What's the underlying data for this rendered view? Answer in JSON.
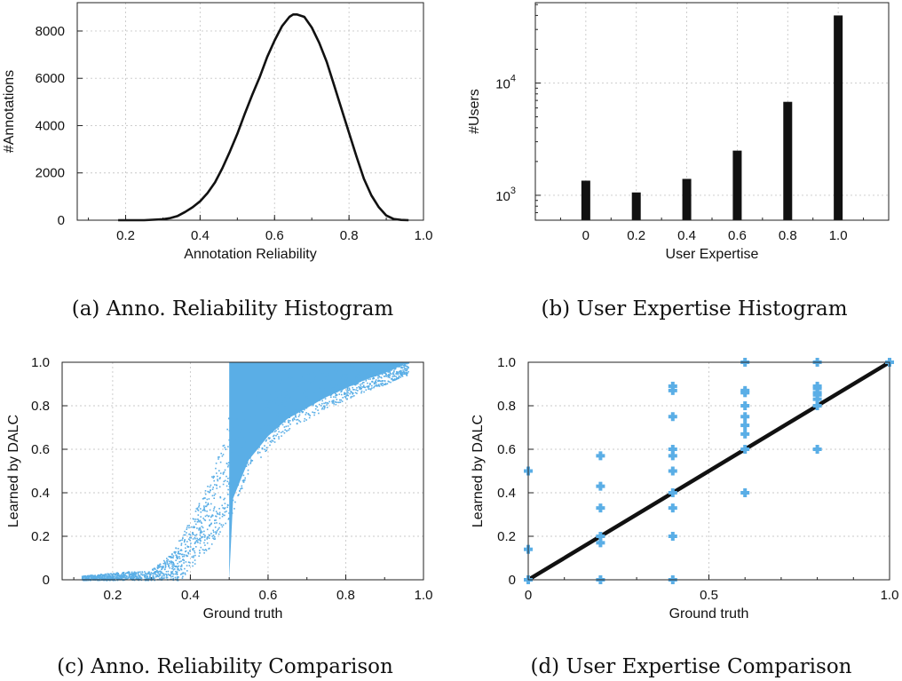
{
  "chart_data": [
    {
      "type": "line",
      "caption": "(a)  Anno. Reliability Histogram",
      "xlabel": "Annotation Reliability",
      "ylabel": "#Annotations",
      "xlim": [
        0.07,
        1.0
      ],
      "ylim": [
        0,
        9200
      ],
      "xticks": [
        "0.2",
        "0.4",
        "0.6",
        "0.8",
        "1.0"
      ],
      "xtick_values": [
        0.2,
        0.4,
        0.6,
        0.8,
        1.0
      ],
      "yticks": [
        "0",
        "2000",
        "4000",
        "6000",
        "8000"
      ],
      "ytick_values": [
        0,
        2000,
        4000,
        6000,
        8000
      ],
      "grid": true,
      "line_color": "#111111",
      "series": [
        {
          "x": [
            0.18,
            0.25,
            0.3,
            0.32,
            0.34,
            0.36,
            0.38,
            0.4,
            0.42,
            0.44,
            0.46,
            0.48,
            0.5,
            0.52,
            0.54,
            0.56,
            0.58,
            0.6,
            0.62,
            0.64,
            0.65,
            0.66,
            0.67,
            0.68,
            0.7,
            0.72,
            0.74,
            0.76,
            0.78,
            0.8,
            0.82,
            0.84,
            0.86,
            0.88,
            0.9,
            0.92,
            0.94,
            0.96
          ],
          "y": [
            0,
            0,
            40,
            90,
            180,
            350,
            550,
            800,
            1150,
            1600,
            2200,
            2900,
            3650,
            4500,
            5300,
            6050,
            6900,
            7600,
            8200,
            8600,
            8700,
            8700,
            8650,
            8600,
            8150,
            7500,
            6700,
            5700,
            4700,
            3700,
            2700,
            1750,
            1050,
            550,
            200,
            50,
            10,
            0
          ]
        }
      ]
    },
    {
      "type": "bar",
      "caption": "(b)  User Expertise Histogram",
      "xlabel": "User Expertise",
      "ylabel": "#Users",
      "yscale": "log",
      "xlim": [
        -0.2,
        1.2
      ],
      "ylim": [
        600,
        52000
      ],
      "categories": [
        "0",
        "0.2",
        "0.4",
        "0.6",
        "0.8",
        "1.0"
      ],
      "x": [
        0,
        0.2,
        0.4,
        0.6,
        0.8,
        1.0
      ],
      "values": [
        1350,
        1060,
        1400,
        2500,
        6800,
        40000
      ],
      "ytick_major": [
        1000,
        10000
      ],
      "ytick_labels": [
        {
          "base": "10",
          "exp": "3"
        },
        {
          "base": "10",
          "exp": "4"
        }
      ],
      "grid": true,
      "bar_color": "#111111"
    },
    {
      "type": "scatter",
      "caption": "(c)  Anno. Reliability Comparison",
      "xlabel": "Ground truth",
      "ylabel": "Learned by DALC",
      "xlim": [
        0.07,
        1.0
      ],
      "ylim": [
        0,
        1.0
      ],
      "xticks": [
        "0.2",
        "0.4",
        "0.6",
        "0.8",
        "1.0"
      ],
      "xtick_values": [
        0.2,
        0.4,
        0.6,
        0.8,
        1.0
      ],
      "yticks": [
        "0",
        "0.2",
        "0.4",
        "0.6",
        "0.8",
        "1.0"
      ],
      "ytick_values": [
        0,
        0.2,
        0.4,
        0.6,
        0.8,
        1.0
      ],
      "grid": true,
      "point_color": "#5aaee6",
      "dense_region": {
        "x": [
          0.5,
          0.96
        ],
        "y_from": [
          0.5,
          1.0
        ],
        "y_to": 1.0
      },
      "trend": {
        "x": [
          0.12,
          0.3,
          0.35,
          0.4,
          0.45,
          0.48,
          0.5,
          0.55,
          0.6,
          0.65,
          0.7,
          0.75,
          0.8,
          0.85,
          0.9,
          0.95
        ],
        "y_low": [
          0,
          0,
          0.0,
          0.1,
          0.2,
          0.28,
          0.33,
          0.55,
          0.66,
          0.74,
          0.79,
          0.84,
          0.88,
          0.92,
          0.95,
          0.99
        ],
        "y_high": [
          0,
          0.03,
          0.1,
          0.26,
          0.45,
          0.6,
          0.75,
          0.83,
          0.88,
          0.92,
          0.95,
          0.97,
          0.98,
          0.99,
          1.0,
          1.0
        ]
      }
    },
    {
      "type": "scatter",
      "caption": "(d)  User Expertise Comparison",
      "xlabel": "Ground truth",
      "ylabel": "Learned by DALC",
      "xlim": [
        0,
        1.0
      ],
      "ylim": [
        0,
        1.0
      ],
      "xticks": [
        "0",
        "0.5",
        "1.0"
      ],
      "xtick_values": [
        0,
        0.5,
        1.0
      ],
      "yticks": [
        "0",
        "0.2",
        "0.4",
        "0.6",
        "0.8",
        "1.0"
      ],
      "ytick_values": [
        0,
        0.2,
        0.4,
        0.6,
        0.8,
        1.0
      ],
      "grid": true,
      "point_color": "#5aaee6",
      "points": [
        [
          0,
          0.5
        ],
        [
          0,
          0.14
        ],
        [
          0,
          0
        ],
        [
          0.2,
          0.57
        ],
        [
          0.2,
          0.43
        ],
        [
          0.2,
          0.33
        ],
        [
          0.2,
          0.2
        ],
        [
          0.2,
          0.17
        ],
        [
          0.2,
          0
        ],
        [
          0.4,
          0.89
        ],
        [
          0.4,
          0.87
        ],
        [
          0.4,
          0.75
        ],
        [
          0.4,
          0.6
        ],
        [
          0.4,
          0.57
        ],
        [
          0.4,
          0.5
        ],
        [
          0.4,
          0.4
        ],
        [
          0.4,
          0.33
        ],
        [
          0.4,
          0.2
        ],
        [
          0.4,
          0
        ],
        [
          0.6,
          1.0
        ],
        [
          0.6,
          0.87
        ],
        [
          0.6,
          0.86
        ],
        [
          0.6,
          0.8
        ],
        [
          0.6,
          0.75
        ],
        [
          0.6,
          0.71
        ],
        [
          0.6,
          0.67
        ],
        [
          0.6,
          0.6
        ],
        [
          0.6,
          0.4
        ],
        [
          0.8,
          1.0
        ],
        [
          0.8,
          0.89
        ],
        [
          0.8,
          0.88
        ],
        [
          0.8,
          0.86
        ],
        [
          0.8,
          0.85
        ],
        [
          0.8,
          0.83
        ],
        [
          0.8,
          0.8
        ],
        [
          0.8,
          0.6
        ],
        [
          1.0,
          1.0
        ]
      ],
      "reference_line": {
        "x": [
          0,
          1.0
        ],
        "y": [
          0,
          1.0
        ],
        "color": "#111111"
      }
    }
  ]
}
